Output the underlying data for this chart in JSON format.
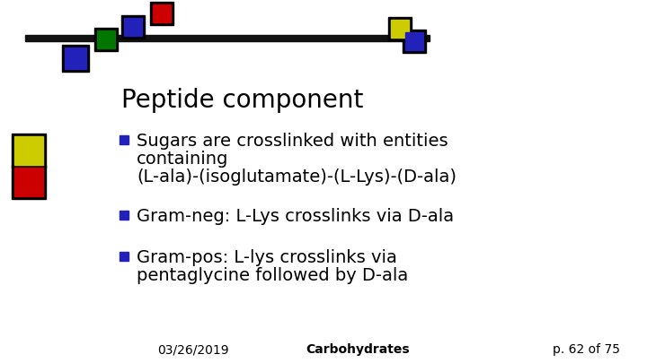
{
  "title": "Peptide component",
  "bullet1_line1": "Sugars are crosslinked with entities",
  "bullet1_line2": "containing",
  "bullet1_line3": "(L-ala)-(isoglutamate)-(L-Lys)-(D-ala)",
  "bullet2": "Gram-neg: L-Lys crosslinks via D-ala",
  "bullet3_line1": "Gram-pos: L-lys crosslinks via",
  "bullet3_line2": "pentaglycine followed by D-ala",
  "footer_left": "03/26/2019",
  "footer_center": "Carbohydrates",
  "footer_right": "p. 62 of 75",
  "bg_color": "#ffffff",
  "text_color": "#000000",
  "bullet_color": "#2222bb",
  "title_fontsize": 20,
  "body_fontsize": 14,
  "footer_fontsize": 10,
  "bar_color": "#111111",
  "green": "#007700",
  "blue": "#2222bb",
  "red": "#cc0000",
  "yellow": "#cccc00"
}
